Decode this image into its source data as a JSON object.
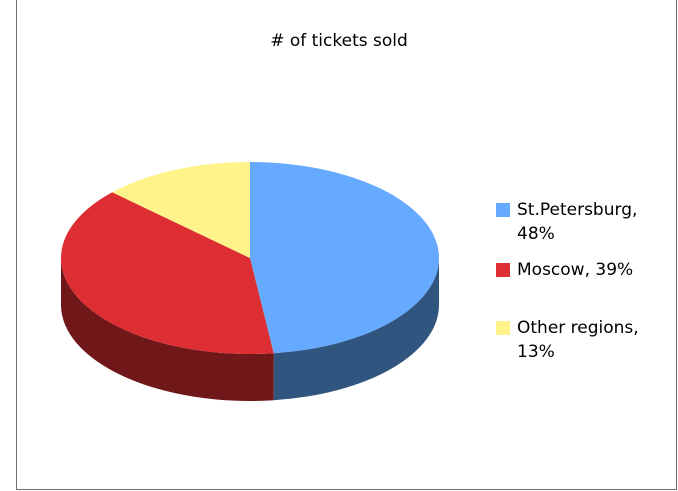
{
  "chart_data": {
    "type": "pie",
    "title": "# of tickets sold",
    "style": "3d",
    "legend_position": "right",
    "slices": [
      {
        "label": "St.Petersburg",
        "value": 48,
        "legend_text": "St.Petersburg,\n48%",
        "color": "#66aaff",
        "side_color": "#30557f"
      },
      {
        "label": "Moscow",
        "value": 39,
        "legend_text": "Moscow, 39%",
        "color": "#dd2e33",
        "side_color": "#6f1719"
      },
      {
        "label": "Other regions",
        "value": 13,
        "legend_text": "Other regions,\n13%",
        "color": "#fff38a",
        "side_color": "#807a45"
      }
    ]
  }
}
